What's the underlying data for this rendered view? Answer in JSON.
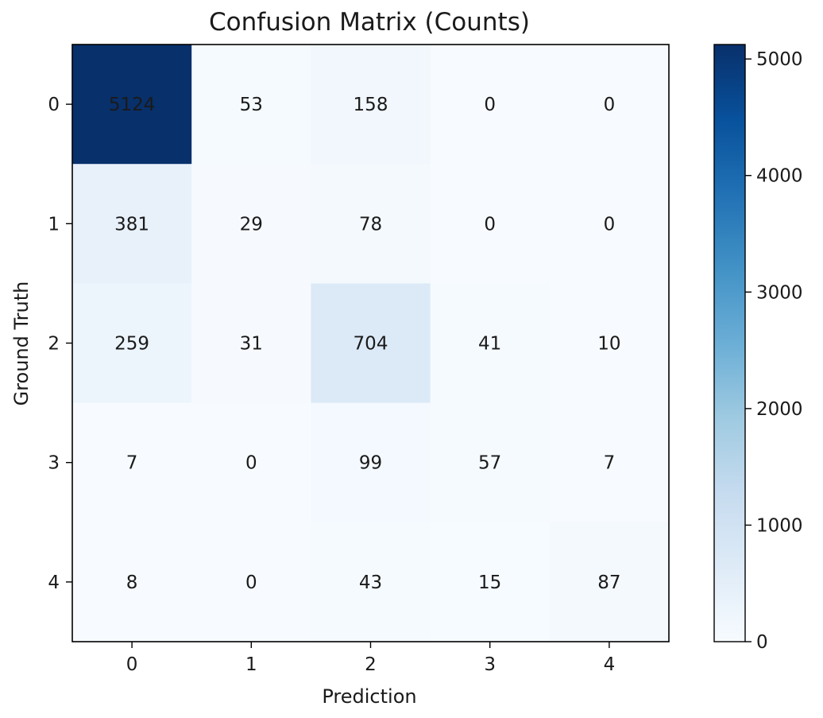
{
  "chart_data": {
    "type": "heatmap",
    "title": "Confusion Matrix (Counts)",
    "xlabel": "Prediction",
    "ylabel": "Ground Truth",
    "x_categories": [
      "0",
      "1",
      "2",
      "3",
      "4"
    ],
    "y_categories": [
      "0",
      "1",
      "2",
      "3",
      "4"
    ],
    "values": [
      [
        5124,
        53,
        158,
        0,
        0
      ],
      [
        381,
        29,
        78,
        0,
        0
      ],
      [
        259,
        31,
        704,
        41,
        10
      ],
      [
        7,
        0,
        99,
        57,
        7
      ],
      [
        8,
        0,
        43,
        15,
        87
      ]
    ],
    "colormap": "Blues",
    "colorbar": {
      "range": [
        0,
        5124
      ],
      "ticks": [
        0,
        1000,
        2000,
        3000,
        4000,
        5000
      ]
    },
    "colors": {
      "low": "#f7fbff",
      "high": "#08306b",
      "text": "#1a1a1a"
    }
  }
}
